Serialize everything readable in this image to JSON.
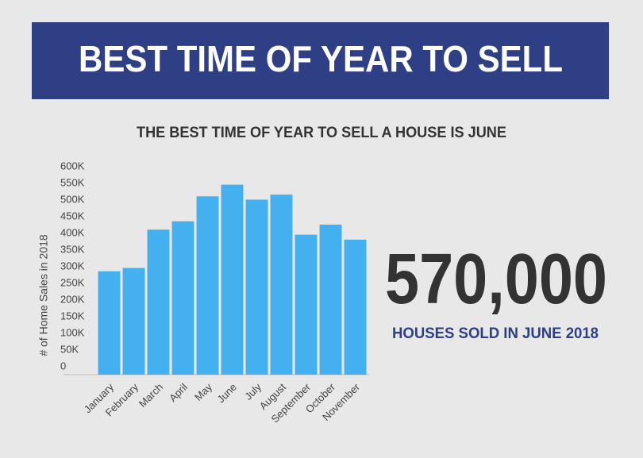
{
  "chart_data": {
    "type": "bar",
    "title": "BEST TIME OF YEAR TO SELL",
    "subtitle": "THE BEST TIME OF YEAR TO SELL A HOUSE IS JUNE",
    "y_label": "# of Home Sales in 2018",
    "categories": [
      "January",
      "February",
      "March",
      "April",
      "May",
      "June",
      "July",
      "August",
      "September",
      "October",
      "November"
    ],
    "values": [
      310000,
      320000,
      435000,
      460000,
      535000,
      570000,
      525000,
      540000,
      420000,
      450000,
      405000
    ],
    "color": "#45b0ef",
    "ylim": [
      0,
      600000
    ],
    "yticks": [
      0,
      {
        "value": 50000,
        "label": "50K"
      },
      {
        "value": 100000,
        "label": "100K"
      },
      {
        "value": 150000,
        "label": "150K"
      },
      {
        "value": 200000,
        "label": "200K"
      },
      {
        "value": 250000,
        "label": "250K"
      },
      {
        "value": 300000,
        "label": "300K"
      },
      {
        "value": 350000,
        "label": "350K"
      },
      {
        "value": 400000,
        "label": "400K"
      },
      {
        "value": 450000,
        "label": "450K"
      },
      {
        "value": 500000,
        "label": "500K"
      },
      {
        "value": 550000,
        "label": "550K"
      },
      {
        "value": 600000,
        "label": "600K"
      }
    ],
    "grid": false,
    "headline": "570,000",
    "caption": "HOUSES SOLD IN JUNE 2018"
  }
}
